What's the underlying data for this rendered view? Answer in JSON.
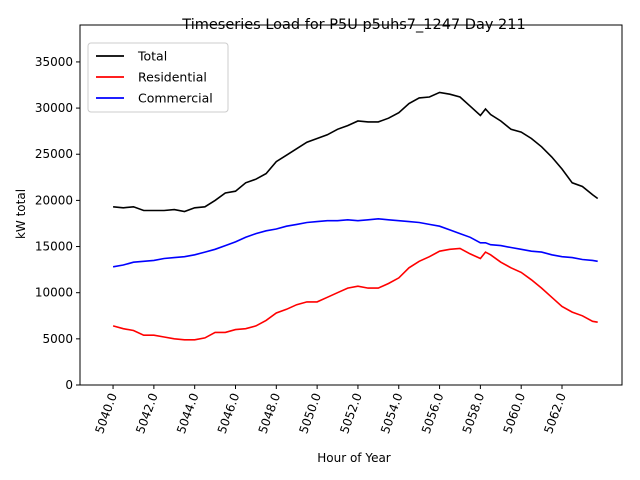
{
  "chart_data": {
    "type": "line",
    "title": "Timeseries Load for P5U p5uhs7_1247  Day 211",
    "xlabel": "Hour of Year",
    "ylabel": "kW total",
    "xlim": [
      5038.38,
      5064.94
    ],
    "ylim": [
      0,
      39000
    ],
    "grid": false,
    "legend_position": "top-left",
    "x_ticks": [
      5040,
      5042,
      5044,
      5046,
      5048,
      5050,
      5052,
      5054,
      5056,
      5058,
      5060,
      5062
    ],
    "x_tick_labels": [
      "5040.0",
      "5042.0",
      "5044.0",
      "5046.0",
      "5048.0",
      "5050.0",
      "5052.0",
      "5054.0",
      "5056.0",
      "5058.0",
      "5060.0",
      "5062.0"
    ],
    "y_ticks": [
      0,
      5000,
      10000,
      15000,
      20000,
      25000,
      30000,
      35000
    ],
    "y_tick_labels": [
      "0",
      "5000",
      "10000",
      "15000",
      "20000",
      "25000",
      "30000",
      "35000"
    ],
    "x": [
      5040,
      5040.5,
      5041,
      5041.5,
      5042,
      5042.5,
      5043,
      5043.5,
      5044,
      5044.5,
      5045,
      5045.5,
      5046,
      5046.5,
      5047,
      5047.5,
      5048,
      5048.5,
      5049,
      5049.5,
      5050,
      5050.5,
      5051,
      5051.5,
      5052,
      5052.5,
      5053,
      5053.5,
      5054,
      5054.5,
      5055,
      5055.5,
      5056,
      5056.5,
      5057,
      5057.5,
      5058,
      5058.25,
      5058.5,
      5059,
      5059.5,
      5060,
      5060.5,
      5061,
      5061.5,
      5062,
      5062.5,
      5063,
      5063.5,
      5063.75
    ],
    "series": [
      {
        "name": "Total",
        "color": "#000000",
        "values": [
          19300,
          19200,
          19300,
          18900,
          18900,
          18900,
          19000,
          18800,
          19200,
          19300,
          20000,
          20800,
          21000,
          21900,
          22300,
          22900,
          24200,
          24900,
          25600,
          26300,
          26700,
          27100,
          27700,
          28100,
          28600,
          28500,
          28500,
          28900,
          29500,
          30500,
          31100,
          31200,
          31700,
          31500,
          31200,
          30200,
          29200,
          29900,
          29300,
          28600,
          27700,
          27400,
          26700,
          25800,
          24700,
          23400,
          21900,
          21500,
          20600,
          20200
        ]
      },
      {
        "name": "Residential",
        "color": "#ff0000",
        "values": [
          6400,
          6100,
          5900,
          5400,
          5400,
          5200,
          5000,
          4900,
          4900,
          5100,
          5700,
          5700,
          6000,
          6100,
          6400,
          7000,
          7800,
          8200,
          8700,
          9000,
          9000,
          9500,
          10000,
          10500,
          10700,
          10500,
          10500,
          11000,
          11600,
          12700,
          13400,
          13900,
          14500,
          14700,
          14800,
          14200,
          13700,
          14400,
          14100,
          13300,
          12700,
          12200,
          11400,
          10500,
          9500,
          8500,
          7900,
          7500,
          6900,
          6800
        ]
      },
      {
        "name": "Commercial",
        "color": "#0000ff",
        "values": [
          12800,
          13000,
          13300,
          13400,
          13500,
          13700,
          13800,
          13900,
          14100,
          14400,
          14700,
          15100,
          15500,
          16000,
          16400,
          16700,
          16900,
          17200,
          17400,
          17600,
          17700,
          17800,
          17800,
          17900,
          17800,
          17900,
          18000,
          17900,
          17800,
          17700,
          17600,
          17400,
          17200,
          16800,
          16400,
          16000,
          15400,
          15400,
          15200,
          15100,
          14900,
          14700,
          14500,
          14400,
          14100,
          13900,
          13800,
          13600,
          13500,
          13400
        ]
      }
    ]
  }
}
